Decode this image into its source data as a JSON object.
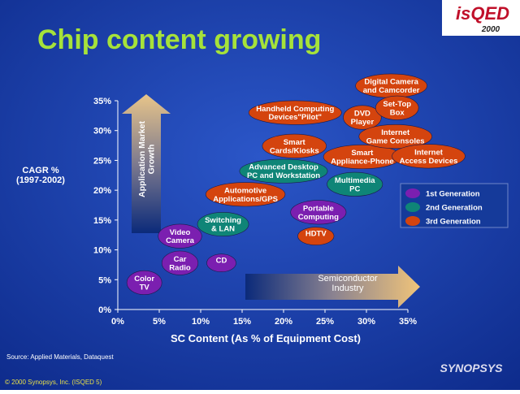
{
  "logo": {
    "name": "isQED",
    "year": "2000"
  },
  "chart_data": {
    "type": "bubble-map",
    "title": "Chip content growing",
    "y_label": "CAGR %\n(1997-2002)",
    "x_label": "SC Content (As % of Equipment Cost)",
    "y_arrow": "Application Market\nGrowth",
    "x_arrow": "Semiconductor\nIndustry",
    "xlim": [
      0,
      35
    ],
    "ylim": [
      0,
      35
    ],
    "xticks": [
      {
        "value": 0,
        "label": "0%"
      },
      {
        "value": 5,
        "label": "5%"
      },
      {
        "value": 10,
        "label": "10%"
      },
      {
        "value": 15,
        "label": "15%"
      },
      {
        "value": 20,
        "label": "20%"
      },
      {
        "value": 25,
        "label": "25%"
      },
      {
        "value": 30,
        "label": "30%"
      },
      {
        "value": 35,
        "label": "35%"
      }
    ],
    "yticks": [
      {
        "value": 0,
        "label": "0%"
      },
      {
        "value": 5,
        "label": "5%"
      },
      {
        "value": 10,
        "label": "10%"
      },
      {
        "value": 15,
        "label": "15%"
      },
      {
        "value": 20,
        "label": "20%"
      },
      {
        "value": 25,
        "label": "25%"
      },
      {
        "value": 30,
        "label": "30%"
      },
      {
        "value": 35,
        "label": "35%"
      }
    ],
    "series": [
      {
        "name": "1st Generation",
        "color": "#7b1fb0",
        "labels": [
          "Color\nTV",
          "Car\nRadio",
          "Video\nCamera",
          "CD",
          "Portable\nComputing"
        ],
        "x": [
          3.2,
          7.5,
          7.5,
          12.5,
          24.2
        ],
        "values": [
          4.5,
          7.8,
          12.3,
          7.8,
          16.3
        ]
      },
      {
        "name": "2nd Generation",
        "color": "#0f8577",
        "labels": [
          "Switching\n& LAN",
          "Advanced Desktop\nPC and Workstation",
          "Multimedia\nPC"
        ],
        "x": [
          12.7,
          20,
          28.6
        ],
        "values": [
          14.3,
          23.2,
          21
        ]
      },
      {
        "name": "3rd Generation",
        "color": "#d4440e",
        "labels": [
          "Automotive\nApplications/GPS",
          "HDTV",
          "Handheld Computing\nDevices\"Pilot\"",
          "Smart\nCards/Kiosks",
          "Smart\nAppliance-Phone",
          "DVD\nPlayer",
          "Digital Camera\nand Camcorder",
          "Set-Top\nBox",
          "Internet\nGame Consoles",
          "Internet\nAccess Devices"
        ],
        "x": [
          15.4,
          23.9,
          21.4,
          21.3,
          29.5,
          29.5,
          33,
          33.7,
          33.5,
          37.5
        ],
        "values": [
          19.3,
          12.3,
          33,
          27.4,
          25.6,
          32.2,
          37.5,
          33.8,
          29,
          25.7
        ]
      }
    ]
  },
  "footer": {
    "source": "Source: Applied Materials, Dataquest",
    "copyright": "© 2000 Synopsys, Inc. (ISQED 5)",
    "brand": "SYNOPSYS"
  }
}
